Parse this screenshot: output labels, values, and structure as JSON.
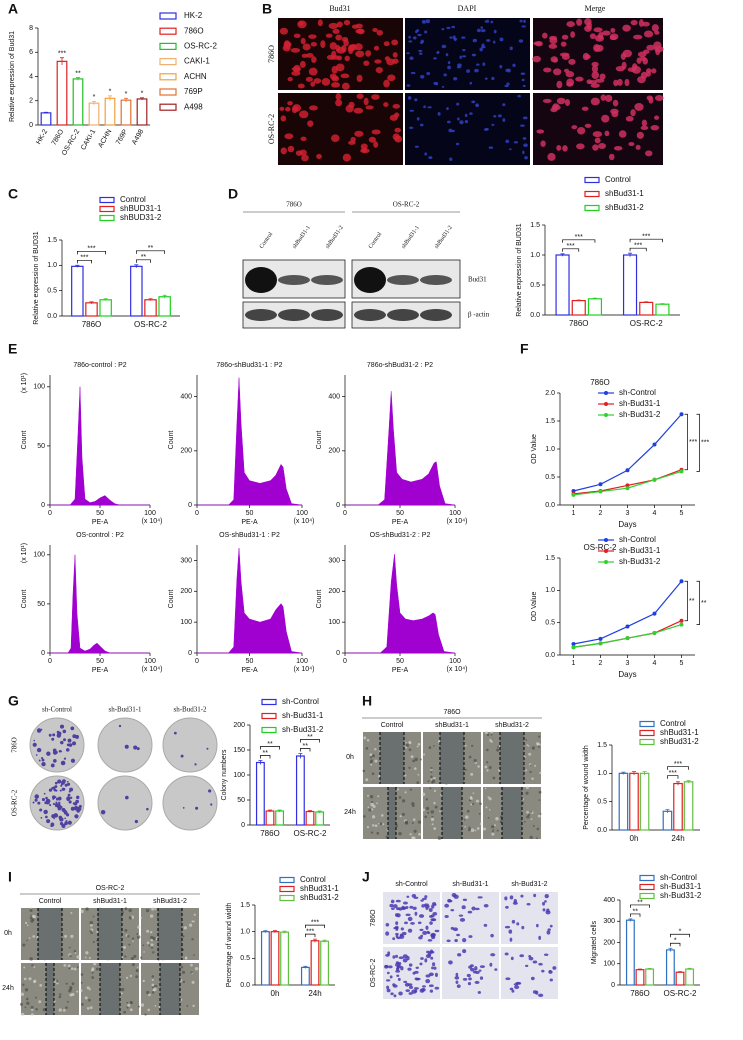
{
  "panel_labels": [
    "A",
    "B",
    "C",
    "D",
    "E",
    "F",
    "G",
    "H",
    "I",
    "J"
  ],
  "images": {
    "B": {
      "columns": [
        "Bud31",
        "DAPI",
        "Merge"
      ],
      "rows": [
        "786O",
        "OS-RC-2"
      ]
    },
    "D": {
      "groups": [
        "786O",
        "OS-RC-2"
      ],
      "lanes": [
        "Control",
        "shBud31-1",
        "shBud31-2"
      ],
      "bands": [
        "Bud31",
        "β -actin"
      ]
    },
    "G": {
      "columns": [
        "sh-Control",
        "sh-Bud31-1",
        "sh-Bud31-2"
      ],
      "rows": [
        "786O",
        "OS-RC-2"
      ]
    },
    "H": {
      "group": "786O",
      "columns": [
        "Control",
        "shBud31-1",
        "shBud31-2"
      ],
      "rows": [
        "0h",
        "24h"
      ]
    },
    "I": {
      "group": "OS-RC-2",
      "columns": [
        "Control",
        "shBud31-1",
        "shBud31-2"
      ],
      "rows": [
        "0h",
        "24h"
      ]
    },
    "J": {
      "columns": [
        "sh-Control",
        "sh-Bud31-1",
        "sh-Bud31-2"
      ],
      "rows": [
        "786O",
        "OS-RC-2"
      ]
    }
  },
  "chart_data": [
    {
      "type": "bar",
      "ylabel": "Relative expression of Bud31",
      "categories": [
        "HK-2",
        "786O",
        "OS-RC-2",
        "CAKI-1",
        "ACHN",
        "769P",
        "A498"
      ],
      "values": [
        1,
        5.25,
        3.8,
        1.8,
        2.2,
        2.05,
        2.15
      ],
      "errors": [
        0.05,
        0.3,
        0.12,
        0.15,
        0.2,
        0.15,
        0.1
      ],
      "colors": [
        "#2f2fe0",
        "#e02020",
        "#20c020",
        "#f0b070",
        "#f0a040",
        "#e07030",
        "#a02020"
      ],
      "significance": [
        null,
        "***",
        "**",
        "*",
        "*",
        "*",
        "*"
      ],
      "ylim": [
        0,
        8
      ],
      "yticks": [
        0,
        2,
        4,
        6,
        8
      ]
    },
    {
      "type": "bar",
      "ylabel": "Relative expression of BUD31",
      "categories": [
        "786O",
        "OS-RC-2"
      ],
      "series": [
        {
          "name": "Control",
          "color": "#2f2fe0",
          "values": [
            0.98,
            0.98
          ],
          "errors": [
            0.02,
            0.03
          ]
        },
        {
          "name": "shBUD31-1",
          "color": "#e02020",
          "values": [
            0.26,
            0.32
          ],
          "errors": [
            0.02,
            0.02
          ]
        },
        {
          "name": "shBUD31-2",
          "color": "#20d020",
          "values": [
            0.32,
            0.38
          ],
          "errors": [
            0.02,
            0.03
          ]
        }
      ],
      "significance": [
        [
          "***",
          "***"
        ],
        [
          "**",
          "**"
        ]
      ],
      "ylim": [
        0,
        1.5
      ],
      "yticks": [
        {
          "value": 0,
          "label": "0.0"
        },
        0.5,
        {
          "value": 1,
          "label": "1.0"
        },
        1.5
      ]
    },
    {
      "type": "bar",
      "ylabel": "Relative expression of BUD31",
      "categories": [
        "786O",
        "OS-RC-2"
      ],
      "series": [
        {
          "name": "Control",
          "color": "#2f2fe0",
          "values": [
            1,
            1
          ],
          "errors": [
            0.02,
            0.03
          ]
        },
        {
          "name": "shBud31-1",
          "color": "#e02020",
          "values": [
            0.24,
            0.21
          ],
          "errors": [
            0.01,
            0.01
          ]
        },
        {
          "name": "shBud31-2",
          "color": "#20d020",
          "values": [
            0.27,
            0.18
          ],
          "errors": [
            0.01,
            0.01
          ]
        }
      ],
      "significance": [
        [
          "***",
          "***"
        ],
        [
          "***",
          "***"
        ]
      ],
      "ylim": [
        0,
        1.5
      ],
      "yticks": [
        {
          "value": 0,
          "label": "0.0"
        },
        0.5,
        {
          "value": 1,
          "label": "1.0"
        },
        1.5
      ]
    },
    {
      "type": "area",
      "title": "786o-control : P2",
      "ylabel": "Count",
      "xlabel": "PE-A",
      "x_scale_label": "(x 10⁴)",
      "y_scale_label": "(x 10¹)",
      "color": "#a000d0",
      "x": [
        0,
        10,
        20,
        25,
        28,
        30,
        32,
        35,
        40,
        45,
        50,
        55,
        60,
        65,
        70,
        100
      ],
      "values": [
        0,
        0,
        0,
        5,
        60,
        100,
        40,
        5,
        2,
        3,
        6,
        8,
        4,
        1,
        0,
        0
      ],
      "xlim": [
        0,
        100
      ],
      "xticks": [
        0,
        50,
        100
      ],
      "ylim": [
        0,
        110
      ],
      "yticks": [
        0,
        50,
        100
      ]
    },
    {
      "type": "area",
      "title": "786o-shBud31-1 : P2",
      "ylabel": "Count",
      "xlabel": "PE-A",
      "x_scale_label": "(x 10⁴)",
      "color": "#a000d0",
      "x": [
        0,
        20,
        30,
        35,
        38,
        40,
        42,
        45,
        50,
        60,
        70,
        75,
        80,
        82,
        85,
        90,
        100
      ],
      "values": [
        0,
        0,
        0,
        20,
        300,
        470,
        300,
        120,
        90,
        80,
        90,
        110,
        150,
        140,
        60,
        5,
        0
      ],
      "xlim": [
        0,
        100
      ],
      "xticks": [
        0,
        50,
        100
      ],
      "ylim": [
        0,
        480
      ],
      "yticks": [
        0,
        200,
        400
      ]
    },
    {
      "type": "area",
      "title": "786o-shBud31-2 : P2",
      "ylabel": "Count",
      "xlabel": "PE-A",
      "x_scale_label": "(x 10⁴)",
      "color": "#a000d0",
      "x": [
        0,
        20,
        30,
        36,
        40,
        42,
        44,
        47,
        52,
        60,
        70,
        76,
        81,
        83,
        86,
        91,
        100
      ],
      "values": [
        0,
        0,
        0,
        20,
        280,
        420,
        280,
        120,
        95,
        85,
        95,
        115,
        155,
        160,
        70,
        5,
        0
      ],
      "xlim": [
        0,
        100
      ],
      "xticks": [
        0,
        50,
        100
      ],
      "ylim": [
        0,
        480
      ],
      "yticks": [
        0,
        200,
        400
      ]
    },
    {
      "type": "area",
      "title": "OS-control : P2",
      "ylabel": "Count",
      "xlabel": "PE-A",
      "x_scale_label": "(x 10⁴)",
      "y_scale_label": "(x 10¹)",
      "color": "#a000d0",
      "x": [
        0,
        10,
        18,
        21,
        23,
        25,
        27,
        30,
        35,
        40,
        44,
        47,
        50,
        55,
        60,
        100
      ],
      "values": [
        0,
        0,
        0,
        5,
        60,
        100,
        40,
        5,
        2,
        4,
        8,
        10,
        7,
        2,
        0,
        0
      ],
      "xlim": [
        0,
        100
      ],
      "xticks": [
        0,
        50,
        100
      ],
      "ylim": [
        0,
        110
      ],
      "yticks": [
        0,
        50,
        100
      ]
    },
    {
      "type": "area",
      "title": "OS-shBud31-1 : P2",
      "ylabel": "Count",
      "xlabel": "PE-A",
      "x_scale_label": "(x 10⁴)",
      "color": "#a000d0",
      "x": [
        0,
        20,
        30,
        35,
        38,
        40,
        42,
        45,
        50,
        60,
        70,
        75,
        80,
        82,
        85,
        90,
        100
      ],
      "values": [
        0,
        0,
        0,
        20,
        240,
        340,
        230,
        130,
        110,
        100,
        110,
        140,
        160,
        150,
        70,
        5,
        0
      ],
      "xlim": [
        0,
        100
      ],
      "xticks": [
        0,
        50,
        100
      ],
      "ylim": [
        0,
        350
      ],
      "yticks": [
        0,
        100,
        200,
        300
      ]
    },
    {
      "type": "area",
      "title": "OS-shBud31-2 : P2",
      "ylabel": "Count",
      "xlabel": "PE-A",
      "x_scale_label": "(x 10⁴)",
      "color": "#a000d0",
      "x": [
        0,
        20,
        32,
        38,
        42,
        45,
        47,
        50,
        55,
        62,
        70,
        76,
        80,
        82,
        85,
        90,
        100
      ],
      "values": [
        0,
        0,
        0,
        20,
        230,
        320,
        220,
        130,
        110,
        105,
        110,
        120,
        130,
        125,
        60,
        5,
        0
      ],
      "xlim": [
        0,
        100
      ],
      "xticks": [
        0,
        50,
        100
      ],
      "ylim": [
        0,
        350
      ],
      "yticks": [
        0,
        100,
        200,
        300
      ]
    },
    {
      "type": "line",
      "title": "786O",
      "xlabel": "Days",
      "ylabel": "OD Value",
      "x": [
        1,
        2,
        3,
        4,
        5
      ],
      "series": [
        {
          "name": "sh-Control",
          "color": "#1f3fe0",
          "values": [
            0.25,
            0.37,
            0.62,
            1.08,
            1.62
          ]
        },
        {
          "name": "sh-Bud31-1",
          "color": "#e02020",
          "values": [
            0.2,
            0.25,
            0.35,
            0.45,
            0.63
          ]
        },
        {
          "name": "sh-Bud31-2",
          "color": "#30d030",
          "values": [
            0.18,
            0.24,
            0.3,
            0.45,
            0.6
          ]
        }
      ],
      "significance": [
        "***",
        "***"
      ],
      "xlim": [
        0.5,
        5.5
      ],
      "xticks": [
        1,
        2,
        3,
        4,
        5
      ],
      "ylim": [
        0,
        2
      ],
      "yticks": [
        {
          "value": 0,
          "label": "0.0"
        },
        0.5,
        {
          "value": 1,
          "label": "1.0"
        },
        1.5,
        {
          "value": 2,
          "label": "2.0"
        }
      ]
    },
    {
      "type": "line",
      "title": "OS-RC-2",
      "xlabel": "Days",
      "ylabel": "OD Value",
      "x": [
        1,
        2,
        3,
        4,
        5
      ],
      "series": [
        {
          "name": "sh-Control",
          "color": "#1f3fe0",
          "values": [
            0.17,
            0.25,
            0.44,
            0.64,
            1.14
          ]
        },
        {
          "name": "sh-Bud31-1",
          "color": "#e02020",
          "values": [
            0.12,
            0.18,
            0.26,
            0.34,
            0.53
          ]
        },
        {
          "name": "sh-Bud31-2",
          "color": "#30d030",
          "values": [
            0.12,
            0.18,
            0.26,
            0.34,
            0.47
          ]
        }
      ],
      "significance": [
        "**",
        "**"
      ],
      "xlim": [
        0.5,
        5.5
      ],
      "xticks": [
        1,
        2,
        3,
        4,
        5
      ],
      "ylim": [
        0,
        1.5
      ],
      "yticks": [
        {
          "value": 0,
          "label": "0.0"
        },
        0.5,
        {
          "value": 1,
          "label": "1.0"
        },
        1.5
      ]
    },
    {
      "type": "bar",
      "ylabel": "Colony numbers",
      "categories": [
        "786O",
        "OS-RC-2"
      ],
      "series": [
        {
          "name": "sh-Control",
          "color": "#2f2fe0",
          "values": [
            125,
            138
          ],
          "errors": [
            4,
            5
          ]
        },
        {
          "name": "sh-Bud31-1",
          "color": "#e02020",
          "values": [
            28,
            27
          ],
          "errors": [
            2,
            2
          ]
        },
        {
          "name": "sh-Bud31-2",
          "color": "#20d020",
          "values": [
            28,
            26
          ],
          "errors": [
            2,
            2
          ]
        }
      ],
      "significance": [
        [
          "**",
          "**"
        ],
        [
          "**",
          "**"
        ]
      ],
      "ylim": [
        0,
        200
      ],
      "yticks": [
        0,
        50,
        100,
        150,
        200
      ]
    },
    {
      "type": "bar",
      "ylabel": "Percentage of wound width",
      "categories": [
        "0h",
        "24h"
      ],
      "series": [
        {
          "name": "Control",
          "color": "#3070c0",
          "values": [
            1,
            0.33
          ],
          "errors": [
            0.02,
            0.03
          ]
        },
        {
          "name": "shBud31-1",
          "color": "#e02020",
          "values": [
            1,
            0.82
          ],
          "errors": [
            0.03,
            0.03
          ]
        },
        {
          "name": "shBud31-2",
          "color": "#60c040",
          "values": [
            1,
            0.85
          ],
          "errors": [
            0.03,
            0.02
          ]
        }
      ],
      "significance": [
        [
          null,
          null
        ],
        [
          "***",
          "***"
        ]
      ],
      "ylim": [
        0,
        1.5
      ],
      "yticks": [
        {
          "value": 0,
          "label": "0.0"
        },
        0.5,
        {
          "value": 1,
          "label": "1.0"
        },
        1.5
      ]
    },
    {
      "type": "bar",
      "ylabel": "Percentage of wound width",
      "categories": [
        "0h",
        "24h"
      ],
      "series": [
        {
          "name": "Control",
          "color": "#3070c0",
          "values": [
            1,
            0.33
          ],
          "errors": [
            0.02,
            0.02
          ]
        },
        {
          "name": "shBud31-1",
          "color": "#e02020",
          "values": [
            1,
            0.83
          ],
          "errors": [
            0.02,
            0.03
          ]
        },
        {
          "name": "shBud31-2",
          "color": "#60c040",
          "values": [
            0.99,
            0.82
          ],
          "errors": [
            0.02,
            0.02
          ]
        }
      ],
      "significance": [
        [
          null,
          null
        ],
        [
          "***",
          "***"
        ]
      ],
      "ylim": [
        0,
        1.5
      ],
      "yticks": [
        {
          "value": 0,
          "label": "0.0"
        },
        0.5,
        {
          "value": 1,
          "label": "1.0"
        },
        1.5
      ]
    },
    {
      "type": "bar",
      "ylabel": "Migrated cells",
      "categories": [
        "786O",
        "OS-RC-2"
      ],
      "series": [
        {
          "name": "sh-Control",
          "color": "#3070c0",
          "values": [
            305,
            165
          ],
          "errors": [
            6,
            8
          ]
        },
        {
          "name": "sh-Bud31-1",
          "color": "#e02020",
          "values": [
            72,
            60
          ],
          "errors": [
            3,
            3
          ]
        },
        {
          "name": "sh-Bud31-2",
          "color": "#60c040",
          "values": [
            75,
            75
          ],
          "errors": [
            3,
            4
          ]
        }
      ],
      "significance": [
        [
          "**",
          "**"
        ],
        [
          "*",
          "*"
        ]
      ],
      "ylim": [
        0,
        400
      ],
      "yticks": [
        0,
        100,
        200,
        300,
        400
      ]
    }
  ]
}
